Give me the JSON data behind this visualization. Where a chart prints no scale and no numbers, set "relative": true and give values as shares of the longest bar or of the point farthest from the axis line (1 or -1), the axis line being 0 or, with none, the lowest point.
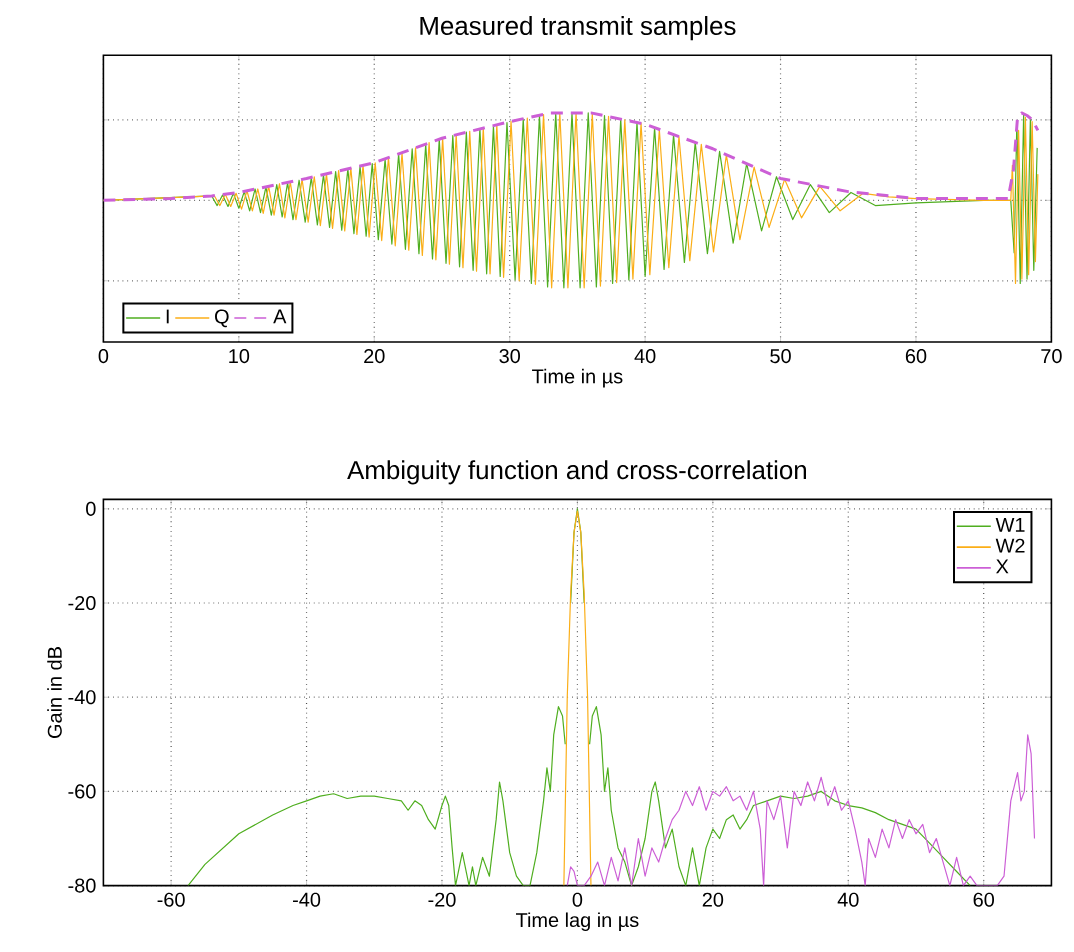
{
  "chart_data": [
    {
      "type": "line",
      "title": "Measured transmit samples",
      "xlabel": "Time in µs",
      "relative": true,
      "xlim": [
        0,
        70
      ],
      "xticks": [
        0,
        10,
        20,
        30,
        40,
        50,
        60,
        70
      ],
      "grid": true,
      "legend": "bottom left",
      "tick_labels": "x",
      "series": [
        {
          "name": "I",
          "color": "#4fae1f",
          "x": [
            0,
            8.0,
            8.4,
            8.8,
            9.2,
            9.6,
            10.0,
            10.4,
            10.8,
            11.2,
            11.6,
            12.0,
            12.4,
            12.8,
            13.2,
            13.6,
            14.0,
            14.45,
            14.9,
            15.35,
            15.8,
            16.25,
            16.7,
            17.15,
            17.6,
            18.05,
            18.5,
            18.95,
            19.4,
            19.85,
            20.3,
            20.8,
            21.3,
            21.8,
            22.3,
            22.8,
            23.3,
            23.8,
            24.3,
            24.8,
            25.3,
            25.8,
            26.3,
            26.8,
            27.3,
            27.8,
            28.3,
            28.8,
            29.3,
            29.8,
            30.4,
            31.0,
            31.6,
            32.2,
            32.8,
            33.4,
            34.0,
            34.6,
            35.2,
            35.8,
            36.4,
            37.0,
            37.6,
            38.2,
            38.8,
            39.4,
            40.0,
            40.7,
            41.4,
            42.1,
            42.9,
            43.7,
            44.6,
            45.5,
            46.5,
            47.5,
            48.6,
            49.7,
            50.9,
            52.2,
            53.6,
            55.2,
            57.0,
            60.0,
            65.0,
            67.0,
            67.25,
            67.45,
            67.7,
            67.95,
            68.2,
            68.45,
            68.7,
            68.95
          ],
          "values": [
            0,
            0.05,
            -0.06,
            0.06,
            -0.07,
            0.08,
            -0.09,
            0.1,
            -0.12,
            0.13,
            -0.14,
            0.15,
            -0.17,
            0.18,
            -0.19,
            0.2,
            -0.22,
            0.23,
            -0.25,
            0.26,
            -0.28,
            0.29,
            -0.31,
            0.33,
            -0.34,
            0.36,
            -0.38,
            0.39,
            -0.41,
            0.42,
            -0.45,
            0.47,
            -0.5,
            0.53,
            -0.56,
            0.59,
            -0.61,
            0.64,
            -0.67,
            0.7,
            -0.72,
            0.74,
            -0.76,
            0.78,
            -0.8,
            0.82,
            -0.84,
            0.85,
            -0.87,
            0.89,
            -0.91,
            0.93,
            -0.95,
            0.97,
            -0.99,
            1.0,
            -1.0,
            1.0,
            -1.0,
            1.0,
            -0.99,
            0.97,
            -0.95,
            0.93,
            -0.91,
            0.89,
            -0.87,
            0.83,
            -0.79,
            0.75,
            -0.71,
            0.66,
            -0.61,
            0.56,
            -0.49,
            0.42,
            -0.35,
            0.27,
            -0.22,
            0.18,
            -0.14,
            0.09,
            -0.06,
            -0.03,
            0,
            0,
            -0.6,
            0.9,
            -0.95,
            0.98,
            -0.9,
            0.95,
            -0.8,
            0.6
          ]
        },
        {
          "name": "Q",
          "color": "#fbae17",
          "x": [
            0,
            8.2,
            8.6,
            9.0,
            9.4,
            9.8,
            10.2,
            10.6,
            11.0,
            11.4,
            11.8,
            12.2,
            12.6,
            13.0,
            13.4,
            13.8,
            14.22,
            14.67,
            15.12,
            15.57,
            16.02,
            16.47,
            16.92,
            17.37,
            17.82,
            18.27,
            18.72,
            19.17,
            19.62,
            20.07,
            20.55,
            21.05,
            21.55,
            22.05,
            22.55,
            23.05,
            23.55,
            24.05,
            24.55,
            25.05,
            25.55,
            26.05,
            26.55,
            27.05,
            27.55,
            28.05,
            28.55,
            29.05,
            29.55,
            30.1,
            30.7,
            31.3,
            31.9,
            32.5,
            33.1,
            33.7,
            34.3,
            34.9,
            35.5,
            36.1,
            36.7,
            37.3,
            37.9,
            38.5,
            39.1,
            39.7,
            40.35,
            41.05,
            41.75,
            42.5,
            43.3,
            44.15,
            45.05,
            46.0,
            47.0,
            48.05,
            49.15,
            50.3,
            51.55,
            52.9,
            54.4,
            56.1,
            58.0,
            60.0,
            65.0,
            67.0,
            67.12,
            67.35,
            67.58,
            67.82,
            68.08,
            68.32,
            68.58,
            68.82,
            69.0
          ],
          "values": [
            0,
            0.05,
            -0.06,
            0.07,
            -0.07,
            0.08,
            -0.1,
            0.11,
            -0.12,
            0.13,
            -0.15,
            0.16,
            -0.17,
            0.19,
            -0.2,
            0.21,
            -0.22,
            0.24,
            -0.25,
            0.27,
            -0.29,
            0.3,
            -0.32,
            0.34,
            -0.35,
            0.37,
            -0.39,
            0.4,
            -0.42,
            0.43,
            -0.46,
            0.49,
            -0.52,
            0.54,
            -0.57,
            0.6,
            -0.63,
            0.66,
            -0.68,
            0.71,
            -0.73,
            0.75,
            -0.77,
            0.79,
            -0.81,
            0.83,
            -0.84,
            0.86,
            -0.88,
            0.9,
            -0.92,
            0.94,
            -0.96,
            0.98,
            -1.0,
            1.0,
            -1.0,
            1.0,
            -1.0,
            0.99,
            -0.98,
            0.96,
            -0.94,
            0.92,
            -0.9,
            0.88,
            -0.85,
            0.81,
            -0.77,
            0.73,
            -0.69,
            0.64,
            -0.59,
            0.52,
            -0.45,
            0.38,
            -0.31,
            0.24,
            -0.2,
            0.16,
            -0.12,
            0.08,
            0.04,
            0.02,
            0,
            0,
            0.4,
            -0.95,
            0.8,
            -0.9,
            0.95,
            -0.85,
            0.9,
            -0.7,
            0.3
          ]
        },
        {
          "name": "A",
          "color": "#cc5fd6",
          "line_style": "dashed",
          "x": [
            0,
            5,
            8,
            10,
            15,
            20,
            25,
            30,
            33,
            36,
            40,
            45,
            50,
            55,
            60,
            66.8,
            67.2,
            67.5,
            67.8,
            68.2,
            68.6,
            69.0
          ],
          "values": [
            0,
            0.02,
            0.05,
            0.09,
            0.25,
            0.43,
            0.71,
            0.9,
            1.0,
            1.0,
            0.87,
            0.59,
            0.25,
            0.1,
            0.02,
            0.02,
            0.35,
            0.95,
            1.0,
            0.97,
            0.92,
            0.8
          ]
        }
      ]
    },
    {
      "type": "line",
      "title": "Ambiguity function and cross-correlation",
      "xlabel": "Time lag in µs",
      "ylabel": "Gain in dB",
      "xlim": [
        -70,
        70
      ],
      "ylim": [
        -80,
        2
      ],
      "xticks": [
        -60,
        -40,
        -20,
        0,
        20,
        40,
        60
      ],
      "yticks": [
        -80,
        -60,
        -40,
        -20,
        0
      ],
      "grid": true,
      "legend": "top right",
      "series": [
        {
          "name": "W1",
          "color": "#4fae1f",
          "x": [
            -57.5,
            -55,
            -50,
            -45,
            -42,
            -40,
            -38,
            -36,
            -34,
            -32,
            -30,
            -28,
            -26,
            -25,
            -24,
            -23,
            -22,
            -21,
            -20,
            -19.5,
            -19,
            -18.5,
            -18,
            -17,
            -16,
            -15.5,
            -15,
            -14,
            -13,
            -12,
            -11.5,
            -11,
            -10,
            -9,
            -8,
            -7,
            -6,
            -5,
            -4.5,
            -4,
            -3.5,
            -2.8,
            -2.2,
            -1.8,
            -1.5,
            -1,
            -0.5,
            0,
            0.5,
            1,
            1.5,
            1.8,
            2.2,
            2.8,
            3.5,
            4,
            4.5,
            5,
            6,
            7,
            8,
            9,
            10,
            11,
            11.5,
            12,
            13,
            14,
            15,
            16,
            17,
            18,
            19,
            20,
            21,
            22,
            23,
            24,
            25,
            26,
            28,
            30,
            32,
            34,
            36,
            38,
            40,
            42,
            44,
            46,
            48,
            50,
            52,
            54,
            56,
            58
          ],
          "values": [
            -80,
            -75.5,
            -69,
            -65,
            -63,
            -62,
            -61,
            -60.5,
            -61.5,
            -61,
            -61,
            -61.5,
            -62,
            -64,
            -62,
            -63,
            -66,
            -68,
            -63,
            -61,
            -63,
            -72,
            -80,
            -73,
            -80,
            -76,
            -80,
            -74,
            -78,
            -66,
            -58,
            -62,
            -73,
            -78,
            -80,
            -80,
            -73,
            -62,
            -55,
            -60,
            -48,
            -42,
            -44,
            -50,
            null,
            -20,
            -5,
            0,
            -5,
            -20,
            null,
            -50,
            -44,
            -42,
            -48,
            -60,
            -55,
            -64,
            -72,
            -75,
            -80,
            -76,
            -70,
            -60,
            -58,
            -62,
            -72,
            -68,
            -76,
            -80,
            -72,
            -80,
            -72,
            -68,
            -70,
            -66,
            -65,
            -68,
            -66,
            -63,
            -62,
            -61,
            -61.5,
            -61,
            -60,
            -62,
            -63,
            -63.5,
            -64.5,
            -66,
            -67,
            -68,
            -71,
            -74,
            -77,
            -80
          ]
        },
        {
          "name": "W2",
          "color": "#fbae17",
          "x": [
            -2,
            -1.5,
            -1,
            -0.5,
            0,
            0.5,
            1,
            1.5,
            2
          ],
          "values": [
            -80,
            -40,
            -18,
            -5,
            -0.5,
            -5,
            -18,
            -40,
            -80
          ]
        },
        {
          "name": "X",
          "color": "#cc5fd6",
          "x": [
            -1.5,
            -1,
            -0.5,
            0,
            1,
            2,
            3,
            4,
            5,
            6,
            7,
            8,
            9,
            10,
            11,
            12,
            13,
            14,
            15,
            16,
            17,
            18,
            19,
            20,
            21,
            22,
            23,
            24,
            25,
            26,
            27,
            27.5,
            28,
            29,
            30,
            31,
            32,
            33,
            34,
            35,
            36,
            37,
            38,
            39,
            40,
            41,
            42,
            42.5,
            43,
            44,
            45,
            46,
            47,
            48,
            49,
            50,
            51,
            52,
            53,
            54,
            55,
            56,
            57,
            58,
            59,
            62,
            63,
            64,
            65,
            65.5,
            66,
            66.5,
            67,
            67.5
          ],
          "values": [
            -80,
            -76,
            -77,
            -80,
            -80,
            -78,
            -75,
            -80,
            -74,
            -79,
            -72,
            -80,
            -70,
            -78,
            -72,
            -75,
            -70,
            -66,
            -64,
            -60,
            -63,
            -59,
            -64,
            -60,
            -61,
            -59,
            -62,
            -61,
            -64,
            -60,
            -68,
            -80,
            -62,
            -66,
            -61,
            -72,
            -60,
            -63,
            -58,
            -62,
            -57,
            -63,
            -59,
            -64,
            -62,
            -68,
            -75,
            -80,
            -70,
            -74,
            -68,
            -72,
            -66,
            -70,
            -66,
            -69,
            -67,
            -73,
            -70,
            -75,
            -80,
            -74,
            -80,
            -78,
            -80,
            -80,
            -78,
            -62,
            -56,
            -62,
            -60,
            -48,
            -52,
            -70
          ]
        }
      ]
    }
  ]
}
